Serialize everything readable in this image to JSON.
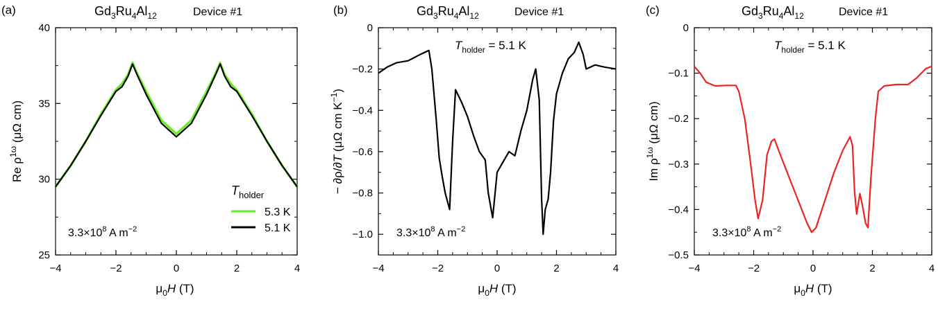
{
  "chart_data": [
    {
      "panel": "(a)",
      "type": "line",
      "title": "Gd3Ru4Al12",
      "title_parts": {
        "el1": "Gd",
        "sub1": "3",
        "el2": "Ru",
        "sub2": "4",
        "el3": "Al",
        "sub3": "12"
      },
      "device": "Device #1",
      "xlabel": {
        "mu": "μ",
        "sub0": "0",
        "H": "H",
        "unit": " (T)"
      },
      "ylabel": {
        "pre": "Re ρ",
        "sup": "1ω",
        "unit": " (μΩ cm)"
      },
      "xlim": [
        -4,
        4
      ],
      "ylim": [
        25,
        40
      ],
      "xticks": [
        "−4",
        "−2",
        "0",
        "2",
        "4"
      ],
      "yticks": [
        "25",
        "30",
        "35",
        "40"
      ],
      "annotation": {
        "pre": "3.3×10",
        "sup8": "8",
        "mid": " A m",
        "sup": "−2"
      },
      "legend": {
        "title": "T",
        "title_sub": "holder",
        "placement": "lower-right"
      },
      "series": [
        {
          "name": "5.3 K",
          "color": "#66ee22",
          "points": [
            [
              -4,
              29.5
            ],
            [
              -3.5,
              30.9
            ],
            [
              -3,
              32.5
            ],
            [
              -2.5,
              34.3
            ],
            [
              -2,
              35.9
            ],
            [
              -1.8,
              36.3
            ],
            [
              -1.6,
              36.9
            ],
            [
              -1.45,
              37.7
            ],
            [
              -1.3,
              37.0
            ],
            [
              -1,
              35.8
            ],
            [
              -0.5,
              33.9
            ],
            [
              0,
              33.0
            ],
            [
              0.5,
              33.9
            ],
            [
              1,
              35.8
            ],
            [
              1.3,
              37.0
            ],
            [
              1.45,
              37.7
            ],
            [
              1.6,
              36.9
            ],
            [
              1.8,
              36.3
            ],
            [
              2,
              35.9
            ],
            [
              2.5,
              34.3
            ],
            [
              3,
              32.5
            ],
            [
              3.5,
              30.9
            ],
            [
              4,
              29.5
            ]
          ]
        },
        {
          "name": "5.1 K",
          "color": "#000000",
          "points": [
            [
              -4,
              29.5
            ],
            [
              -3.5,
              30.9
            ],
            [
              -3,
              32.5
            ],
            [
              -2.5,
              34.2
            ],
            [
              -2,
              35.8
            ],
            [
              -1.8,
              36.1
            ],
            [
              -1.6,
              36.8
            ],
            [
              -1.45,
              37.6
            ],
            [
              -1.3,
              36.9
            ],
            [
              -1,
              35.6
            ],
            [
              -0.5,
              33.7
            ],
            [
              0,
              32.8
            ],
            [
              0.5,
              33.7
            ],
            [
              1,
              35.6
            ],
            [
              1.3,
              36.9
            ],
            [
              1.45,
              37.6
            ],
            [
              1.6,
              36.8
            ],
            [
              1.8,
              36.1
            ],
            [
              2,
              35.8
            ],
            [
              2.5,
              34.2
            ],
            [
              3,
              32.5
            ],
            [
              3.5,
              30.9
            ],
            [
              4,
              29.5
            ]
          ]
        }
      ]
    },
    {
      "panel": "(b)",
      "type": "line",
      "title": "Gd3Ru4Al12",
      "title_parts": {
        "el1": "Gd",
        "sub1": "3",
        "el2": "Ru",
        "sub2": "4",
        "el3": "Al",
        "sub3": "12"
      },
      "device": "Device #1",
      "xlabel": {
        "mu": "μ",
        "sub0": "0",
        "H": "H",
        "unit": " (T)"
      },
      "ylabel": {
        "pre": "− ∂ρ/∂",
        "T": "T",
        "unit": " (μΩ cm K",
        "sup": "−1",
        "close": ")"
      },
      "xlim": [
        -4,
        4
      ],
      "ylim": [
        -1.1,
        0
      ],
      "xticks": [
        "−4",
        "−2",
        "0",
        "2",
        "4"
      ],
      "yticks": [
        "−1.0",
        "−0.8",
        "−0.6",
        "−0.4",
        "−0.2",
        "0"
      ],
      "holder": {
        "T": "T",
        "sub": "holder",
        "val": " = 5.1 K"
      },
      "annotation": {
        "pre": "3.3×10",
        "sup8": "8",
        "mid": " A m",
        "sup": "−2"
      },
      "series": [
        {
          "name": "5.1 K",
          "color": "#000000",
          "points": [
            [
              -4,
              -0.22
            ],
            [
              -3.7,
              -0.19
            ],
            [
              -3.4,
              -0.17
            ],
            [
              -3,
              -0.16
            ],
            [
              -2.6,
              -0.13
            ],
            [
              -2.3,
              -0.11
            ],
            [
              -2.2,
              -0.2
            ],
            [
              -2.05,
              -0.45
            ],
            [
              -1.95,
              -0.63
            ],
            [
              -1.85,
              -0.72
            ],
            [
              -1.75,
              -0.8
            ],
            [
              -1.6,
              -0.88
            ],
            [
              -1.5,
              -0.55
            ],
            [
              -1.4,
              -0.3
            ],
            [
              -1.2,
              -0.36
            ],
            [
              -1,
              -0.43
            ],
            [
              -0.8,
              -0.52
            ],
            [
              -0.6,
              -0.6
            ],
            [
              -0.4,
              -0.64
            ],
            [
              -0.3,
              -0.8
            ],
            [
              -0.15,
              -0.92
            ],
            [
              0,
              -0.7
            ],
            [
              0.2,
              -0.65
            ],
            [
              0.4,
              -0.6
            ],
            [
              0.6,
              -0.62
            ],
            [
              0.8,
              -0.5
            ],
            [
              1,
              -0.4
            ],
            [
              1.2,
              -0.25
            ],
            [
              1.3,
              -0.2
            ],
            [
              1.42,
              -0.35
            ],
            [
              1.5,
              -0.83
            ],
            [
              1.55,
              -1.0
            ],
            [
              1.62,
              -0.88
            ],
            [
              1.72,
              -0.83
            ],
            [
              1.8,
              -0.7
            ],
            [
              1.9,
              -0.45
            ],
            [
              2,
              -0.32
            ],
            [
              2.2,
              -0.22
            ],
            [
              2.4,
              -0.15
            ],
            [
              2.6,
              -0.12
            ],
            [
              2.75,
              -0.07
            ],
            [
              2.9,
              -0.13
            ],
            [
              3,
              -0.2
            ],
            [
              3.3,
              -0.18
            ],
            [
              3.6,
              -0.19
            ],
            [
              4,
              -0.2
            ]
          ]
        }
      ]
    },
    {
      "panel": "(c)",
      "type": "line",
      "title": "Gd3Ru4Al12",
      "title_parts": {
        "el1": "Gd",
        "sub1": "3",
        "el2": "Ru",
        "sub2": "4",
        "el3": "Al",
        "sub3": "12"
      },
      "device": "Device #1",
      "xlabel": {
        "mu": "μ",
        "sub0": "0",
        "H": "H",
        "unit": " (T)"
      },
      "ylabel": {
        "pre": "Im ρ",
        "sup": "1ω",
        "unit": " (μΩ cm)"
      },
      "xlim": [
        -4,
        4
      ],
      "ylim": [
        -0.5,
        0
      ],
      "xticks": [
        "−4",
        "−2",
        "0",
        "2",
        "4"
      ],
      "yticks": [
        "−0.5",
        "−0.4",
        "−0.3",
        "−0.2",
        "−0.1",
        "0"
      ],
      "holder": {
        "T": "T",
        "sub": "holder",
        "val": " = 5.1 K"
      },
      "annotation": {
        "pre": "3.3×10",
        "sup8": "8",
        "mid": " A m",
        "sup": "−2"
      },
      "series": [
        {
          "name": "5.1 K",
          "color": "#ee2222",
          "points": [
            [
              -4,
              -0.085
            ],
            [
              -3.8,
              -0.1
            ],
            [
              -3.6,
              -0.12
            ],
            [
              -3.3,
              -0.128
            ],
            [
              -2.9,
              -0.127
            ],
            [
              -2.6,
              -0.127
            ],
            [
              -2.5,
              -0.14
            ],
            [
              -2.3,
              -0.2
            ],
            [
              -2.1,
              -0.3
            ],
            [
              -1.95,
              -0.38
            ],
            [
              -1.85,
              -0.42
            ],
            [
              -1.7,
              -0.38
            ],
            [
              -1.55,
              -0.28
            ],
            [
              -1.4,
              -0.25
            ],
            [
              -1.3,
              -0.245
            ],
            [
              -1.1,
              -0.28
            ],
            [
              -0.8,
              -0.33
            ],
            [
              -0.5,
              -0.38
            ],
            [
              -0.2,
              -0.43
            ],
            [
              -0.05,
              -0.45
            ],
            [
              0.1,
              -0.44
            ],
            [
              0.4,
              -0.38
            ],
            [
              0.7,
              -0.32
            ],
            [
              1,
              -0.27
            ],
            [
              1.25,
              -0.24
            ],
            [
              1.33,
              -0.26
            ],
            [
              1.4,
              -0.36
            ],
            [
              1.47,
              -0.41
            ],
            [
              1.58,
              -0.365
            ],
            [
              1.66,
              -0.39
            ],
            [
              1.77,
              -0.43
            ],
            [
              1.85,
              -0.44
            ],
            [
              1.95,
              -0.33
            ],
            [
              2.1,
              -0.2
            ],
            [
              2.2,
              -0.14
            ],
            [
              2.4,
              -0.128
            ],
            [
              2.8,
              -0.125
            ],
            [
              3.2,
              -0.125
            ],
            [
              3.5,
              -0.11
            ],
            [
              3.8,
              -0.09
            ],
            [
              4,
              -0.085
            ]
          ]
        }
      ]
    }
  ]
}
